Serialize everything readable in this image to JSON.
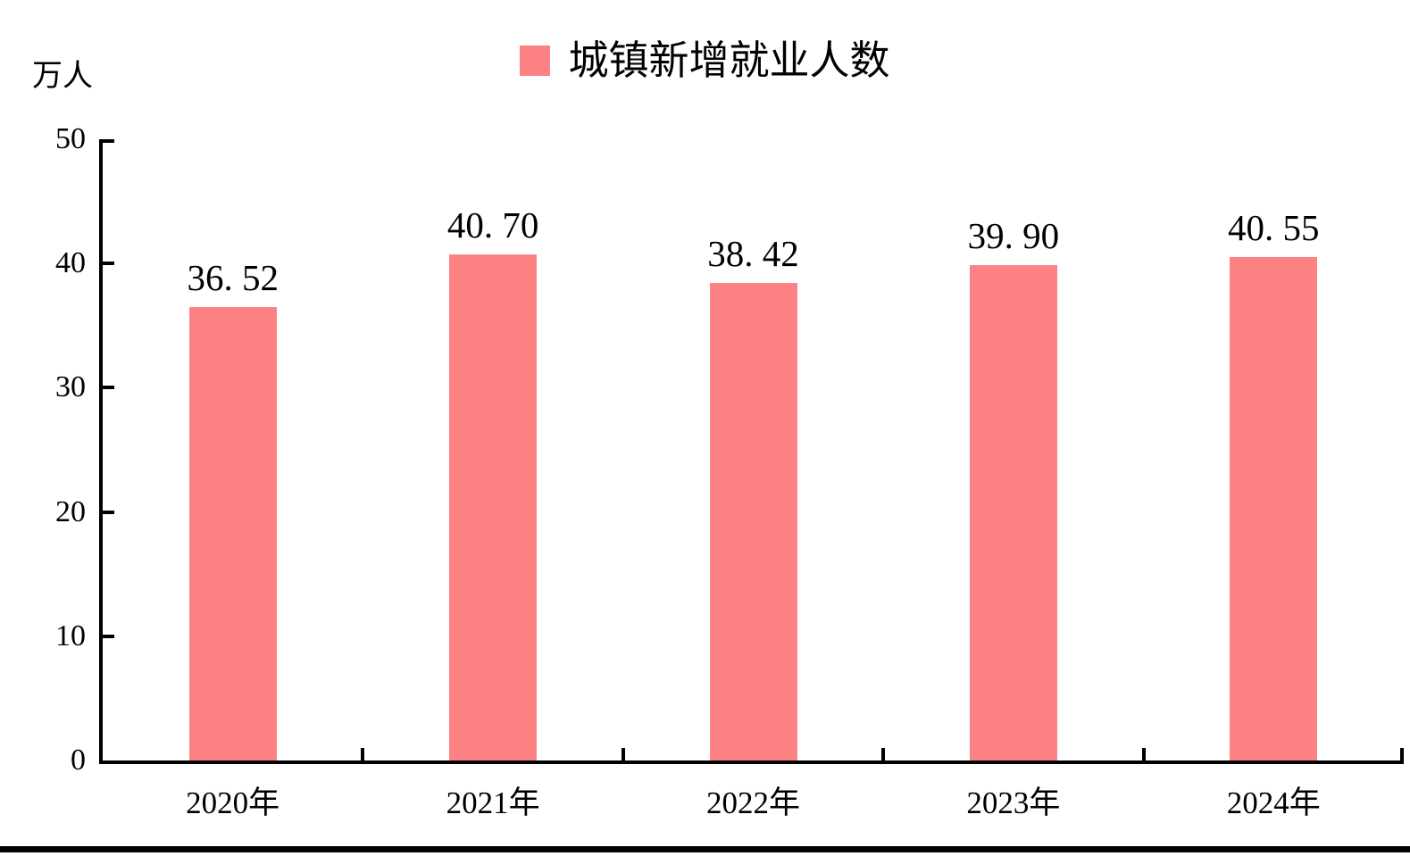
{
  "page": {
    "background": "#ffffff",
    "bottom_rule_color": "#000000"
  },
  "chart_data": {
    "type": "bar",
    "title": "",
    "unit_label": "万人",
    "legend": {
      "label": "城镇新增就业人数",
      "position": "top-center",
      "swatch_color": "#fc8284"
    },
    "categories": [
      "2020年",
      "2021年",
      "2022年",
      "2023年",
      "2024年"
    ],
    "values": [
      36.52,
      40.7,
      38.42,
      39.9,
      40.55
    ],
    "value_labels": [
      "36. 52",
      "40. 70",
      "38. 42",
      "39. 90",
      "40. 55"
    ],
    "ylim": [
      0,
      50
    ],
    "yticks": [
      0,
      10,
      20,
      30,
      40,
      50
    ],
    "grid": false,
    "legend_entries": [
      "城镇新增就业人数"
    ],
    "bar_color": "#fc8284",
    "axis_color": "#000000",
    "text_color": "#000000"
  }
}
